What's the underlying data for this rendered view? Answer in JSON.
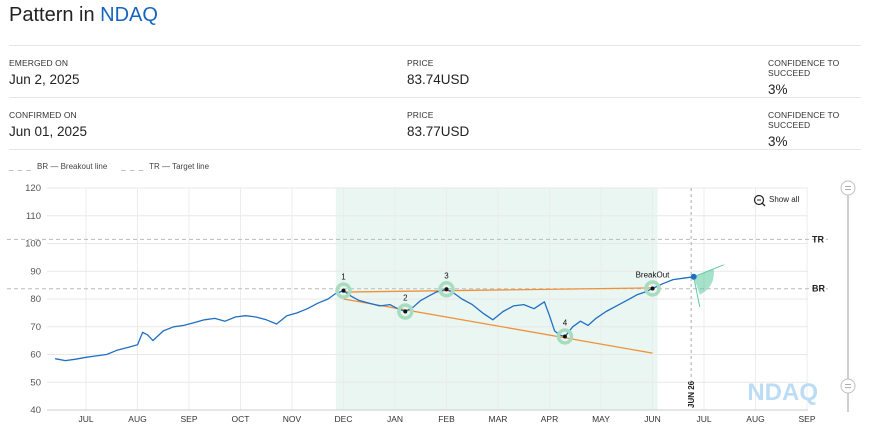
{
  "header": {
    "title_prefix": "Pattern in",
    "symbol": "NDAQ"
  },
  "emerged": {
    "date_label": "EMERGED ON",
    "date_value": "Jun 2, 2025",
    "price_label": "PRICE",
    "price_value": "83.74USD",
    "confidence_label": "CONFIDENCE TO SUCCEED",
    "confidence_value": "3%"
  },
  "confirmed": {
    "date_label": "CONFIRMED ON",
    "date_value": "Jun 01, 2025",
    "price_label": "PRICE",
    "price_value": "83.77USD",
    "confidence_label": "CONFIDENCE TO SUCCEED",
    "confidence_value": "3%"
  },
  "legend": [
    {
      "dash": "_ _ _",
      "text": "BR — Breakout line"
    },
    {
      "dash": "_ _ _",
      "text": "TR — Target line"
    }
  ],
  "controls": {
    "show_all": "Show all"
  },
  "colors": {
    "price_line": "#1f6fc5",
    "trend_line": "#f0913a",
    "pattern_bg": "#eaf6f1",
    "pivot_ring": "#a8dcc0",
    "projection": "#5cc9a0",
    "ref_line": "#bbbbbb"
  },
  "chart_data": {
    "type": "line",
    "ylim": [
      40,
      120
    ],
    "y_ticks": [
      40,
      50,
      60,
      70,
      80,
      90,
      100,
      110,
      120
    ],
    "x_ticks": [
      "JUL",
      "AUG",
      "SEP",
      "OCT",
      "NOV",
      "DEC",
      "JAN",
      "FEB",
      "MAR",
      "APR",
      "MAY",
      "JUN",
      "JUL",
      "AUG",
      "SEP"
    ],
    "reference_lines": [
      {
        "name": "TR",
        "value": 101.5
      },
      {
        "name": "BR",
        "value": 83.7
      }
    ],
    "date_marker": "JUN 26",
    "pattern_points": [
      {
        "label": "1",
        "month": 5.0,
        "value": 83.0
      },
      {
        "label": "2",
        "month": 6.2,
        "value": 75.5
      },
      {
        "label": "3",
        "month": 7.0,
        "value": 83.5
      },
      {
        "label": "4",
        "month": 9.3,
        "value": 66.5
      },
      {
        "label": "BreakOut",
        "month": 11.0,
        "value": 83.8
      }
    ],
    "watermark": "NDAQ",
    "series": [
      {
        "points": [
          [
            -0.6,
            58.5
          ],
          [
            -0.4,
            57.8
          ],
          [
            -0.2,
            58.3
          ],
          [
            0.0,
            59.0
          ],
          [
            0.2,
            59.5
          ],
          [
            0.4,
            60.0
          ],
          [
            0.6,
            61.5
          ],
          [
            0.8,
            62.5
          ],
          [
            1.0,
            63.5
          ],
          [
            1.1,
            68.0
          ],
          [
            1.2,
            67.0
          ],
          [
            1.3,
            65.0
          ],
          [
            1.5,
            68.5
          ],
          [
            1.7,
            70.0
          ],
          [
            1.9,
            70.5
          ],
          [
            2.1,
            71.5
          ],
          [
            2.3,
            72.5
          ],
          [
            2.5,
            73.0
          ],
          [
            2.7,
            72.0
          ],
          [
            2.9,
            73.5
          ],
          [
            3.1,
            74.0
          ],
          [
            3.3,
            73.5
          ],
          [
            3.5,
            72.5
          ],
          [
            3.7,
            71.0
          ],
          [
            3.9,
            74.0
          ],
          [
            4.1,
            75.0
          ],
          [
            4.3,
            76.5
          ],
          [
            4.5,
            78.5
          ],
          [
            4.7,
            80.0
          ],
          [
            4.85,
            82.0
          ],
          [
            5.0,
            83.0
          ],
          [
            5.15,
            81.0
          ],
          [
            5.3,
            79.5
          ],
          [
            5.5,
            78.5
          ],
          [
            5.7,
            77.5
          ],
          [
            5.9,
            78.0
          ],
          [
            6.05,
            76.5
          ],
          [
            6.2,
            75.5
          ],
          [
            6.35,
            77.0
          ],
          [
            6.5,
            79.5
          ],
          [
            6.65,
            81.0
          ],
          [
            6.8,
            82.5
          ],
          [
            7.0,
            83.5
          ],
          [
            7.15,
            82.0
          ],
          [
            7.3,
            80.0
          ],
          [
            7.5,
            78.0
          ],
          [
            7.7,
            75.0
          ],
          [
            7.9,
            72.5
          ],
          [
            8.1,
            75.5
          ],
          [
            8.3,
            77.5
          ],
          [
            8.5,
            78.0
          ],
          [
            8.7,
            76.5
          ],
          [
            8.9,
            79.0
          ],
          [
            9.0,
            74.0
          ],
          [
            9.1,
            68.5
          ],
          [
            9.2,
            67.0
          ],
          [
            9.3,
            66.5
          ],
          [
            9.45,
            70.0
          ],
          [
            9.6,
            72.0
          ],
          [
            9.75,
            70.5
          ],
          [
            9.9,
            73.0
          ],
          [
            10.1,
            75.5
          ],
          [
            10.3,
            77.5
          ],
          [
            10.5,
            79.5
          ],
          [
            10.7,
            81.5
          ],
          [
            10.85,
            82.5
          ],
          [
            11.0,
            83.8
          ],
          [
            11.2,
            85.5
          ],
          [
            11.4,
            87.0
          ],
          [
            11.6,
            87.5
          ],
          [
            11.8,
            88.0
          ]
        ]
      }
    ],
    "trend_lines": [
      {
        "from": [
          5.0,
          82.5
        ],
        "to": [
          11.0,
          84.0
        ]
      },
      {
        "from": [
          5.0,
          80.0
        ],
        "to": [
          11.0,
          60.5
        ]
      }
    ],
    "pattern_range": [
      4.85,
      11.1
    ],
    "projection": {
      "from": [
        11.8,
        88.0
      ]
    }
  }
}
